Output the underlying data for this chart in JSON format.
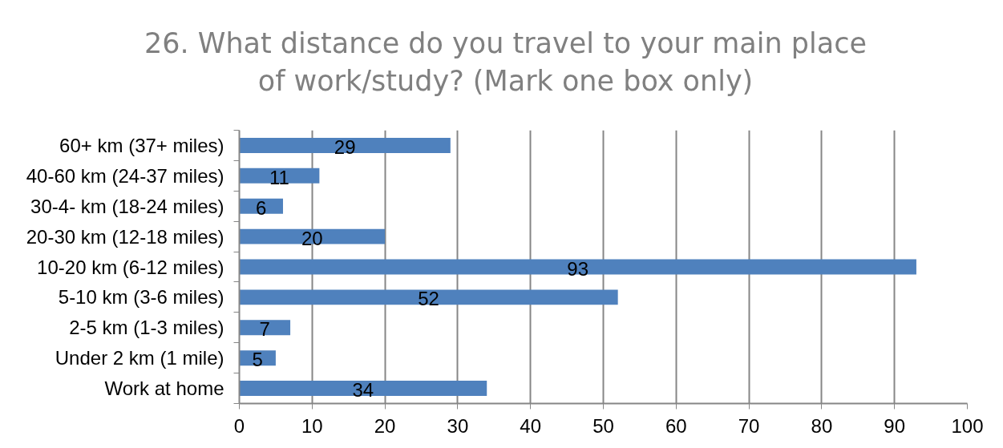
{
  "chart_data": {
    "type": "bar",
    "orientation": "horizontal",
    "title": "26. What distance do you travel to your main place of work/study? (Mark one box only)",
    "categories": [
      "60+ km (37+ miles)",
      "40-60 km (24-37 miles)",
      "30-4- km (18-24 miles)",
      "20-30 km (12-18 miles)",
      "10-20 km (6-12 miles)",
      "5-10 km (3-6 miles)",
      "2-5 km (1-3 miles)",
      "Under 2 km (1 mile)",
      "Work at home"
    ],
    "values": [
      29,
      11,
      6,
      20,
      93,
      52,
      7,
      5,
      34
    ],
    "color": "#4f81bd",
    "xlim": [
      0,
      100
    ],
    "xticks": [
      0,
      10,
      20,
      30,
      40,
      50,
      60,
      70,
      80,
      90,
      100
    ],
    "grid": "x",
    "data_labels": true
  }
}
